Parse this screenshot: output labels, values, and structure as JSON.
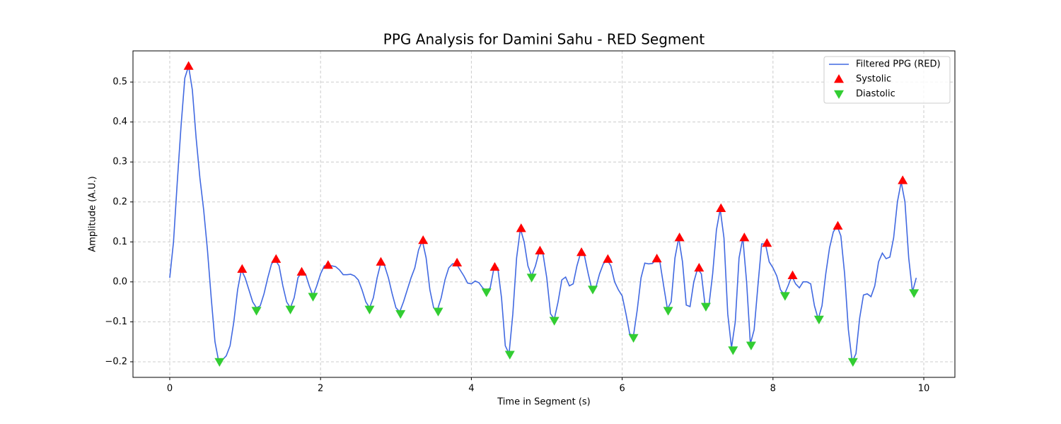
{
  "chart_data": {
    "type": "line",
    "title": "PPG Analysis for Damini Sahu - RED Segment",
    "xlabel": "Time in Segment (s)",
    "ylabel": "Amplitude (A.U.)",
    "xlim": [
      -0.4875,
      10.4125
    ],
    "ylim": [
      -0.239,
      0.578
    ],
    "xticks": [
      0,
      2,
      4,
      6,
      8,
      10
    ],
    "yticks": [
      {
        "value": -0.2,
        "label": "−0.2"
      },
      {
        "value": -0.1,
        "label": "−0.1"
      },
      {
        "value": 0,
        "label": "0.0"
      },
      0.1,
      0.2,
      0.3,
      0.4,
      0.5
    ],
    "grid": true,
    "legend": "upper-right",
    "series": [
      {
        "name": "Filtered PPG (RED)",
        "type": "line",
        "color": "#4169e1",
        "x": [
          0,
          0.05,
          0.1,
          0.15,
          0.2,
          0.25,
          0.3,
          0.35,
          0.4,
          0.45,
          0.5,
          0.55,
          0.6,
          0.65,
          0.7,
          0.75,
          0.8,
          0.85,
          0.9,
          0.95,
          1,
          1.05,
          1.1,
          1.15,
          1.2,
          1.25,
          1.3,
          1.35,
          1.4,
          1.45,
          1.5,
          1.55,
          1.6,
          1.65,
          1.7,
          1.75,
          1.8,
          1.85,
          1.9,
          1.95,
          2,
          2.05,
          2.1,
          2.15,
          2.2,
          2.25,
          2.3,
          2.35,
          2.4,
          2.45,
          2.5,
          2.55,
          2.6,
          2.65,
          2.7,
          2.75,
          2.8,
          2.85,
          2.9,
          2.95,
          3,
          3.05,
          3.1,
          3.15,
          3.2,
          3.25,
          3.3,
          3.35,
          3.4,
          3.45,
          3.5,
          3.55,
          3.6,
          3.65,
          3.7,
          3.75,
          3.8,
          3.85,
          3.9,
          3.95,
          4,
          4.05,
          4.1,
          4.15,
          4.2,
          4.25,
          4.3,
          4.35,
          4.4,
          4.45,
          4.5,
          4.55,
          4.6,
          4.65,
          4.7,
          4.75,
          4.8,
          4.85,
          4.9,
          4.95,
          5,
          5.05,
          5.1,
          5.15,
          5.2,
          5.25,
          5.3,
          5.35,
          5.4,
          5.45,
          5.5,
          5.55,
          5.6,
          5.65,
          5.7,
          5.75,
          5.8,
          5.85,
          5.9,
          5.95,
          6,
          6.05,
          6.1,
          6.15,
          6.2,
          6.25,
          6.3,
          6.35,
          6.4,
          6.45,
          6.5,
          6.55,
          6.6,
          6.65,
          6.7,
          6.75,
          6.8,
          6.85,
          6.9,
          6.95,
          7,
          7.05,
          7.1,
          7.15,
          7.2,
          7.25,
          7.3,
          7.35,
          7.4,
          7.45,
          7.5,
          7.55,
          7.6,
          7.65,
          7.7,
          7.75,
          7.8,
          7.85,
          7.9,
          7.95,
          8,
          8.05,
          8.1,
          8.15,
          8.2,
          8.25,
          8.3,
          8.35,
          8.4,
          8.45,
          8.5,
          8.55,
          8.6,
          8.65,
          8.7,
          8.75,
          8.8,
          8.85,
          8.9,
          8.95,
          9,
          9.05,
          9.1,
          9.15,
          9.2,
          9.25,
          9.3,
          9.35,
          9.4,
          9.45,
          9.5,
          9.55,
          9.6,
          9.65,
          9.7,
          9.75,
          9.8,
          9.85,
          9.9
        ],
        "values": [
          0.01,
          0.1,
          0.25,
          0.39,
          0.51,
          0.54,
          0.48,
          0.36,
          0.26,
          0.18,
          0.08,
          -0.04,
          -0.15,
          -0.2,
          -0.195,
          -0.185,
          -0.16,
          -0.1,
          -0.02,
          0.03,
          0.01,
          -0.02,
          -0.05,
          -0.065,
          -0.06,
          -0.03,
          0.01,
          0.045,
          0.055,
          0.04,
          -0.01,
          -0.05,
          -0.065,
          -0.04,
          0.01,
          0.025,
          0.02,
          -0.01,
          -0.035,
          -0.01,
          0.02,
          0.04,
          0.04,
          0.04,
          0.038,
          0.03,
          0.018,
          0.018,
          0.019,
          0.015,
          0.005,
          -0.02,
          -0.05,
          -0.065,
          -0.04,
          0.01,
          0.048,
          0.04,
          0.01,
          -0.03,
          -0.065,
          -0.075,
          -0.05,
          -0.02,
          0.01,
          0.035,
          0.08,
          0.103,
          0.06,
          -0.02,
          -0.065,
          -0.07,
          -0.04,
          0.005,
          0.035,
          0.045,
          0.046,
          0.03,
          0.015,
          -0.003,
          -0.005,
          0.002,
          -0.002,
          -0.015,
          -0.022,
          -0.015,
          0.035,
          0.035,
          -0.04,
          -0.16,
          -0.18,
          -0.08,
          0.06,
          0.133,
          0.1,
          0.04,
          0.015,
          0.04,
          0.076,
          0.07,
          0.01,
          -0.08,
          -0.093,
          -0.05,
          0.005,
          0.012,
          -0.01,
          -0.005,
          0.04,
          0.073,
          0.065,
          0.02,
          -0.02,
          -0.015,
          0.02,
          0.045,
          0.055,
          0.04,
          0.0,
          -0.02,
          -0.035,
          -0.08,
          -0.13,
          -0.135,
          -0.07,
          0.01,
          0.047,
          0.045,
          0.046,
          0.055,
          0.05,
          -0.01,
          -0.068,
          -0.05,
          0.06,
          0.11,
          0.05,
          -0.058,
          -0.062,
          0.0,
          0.033,
          0.02,
          -0.06,
          -0.06,
          0.02,
          0.13,
          0.182,
          0.11,
          -0.08,
          -0.165,
          -0.1,
          0.06,
          0.11,
          0.0,
          -0.155,
          -0.12,
          -0.01,
          0.095,
          0.095,
          0.05,
          0.035,
          0.015,
          -0.02,
          -0.032,
          -0.01,
          0.015,
          -0.005,
          -0.015,
          0.0,
          0.0,
          -0.005,
          -0.06,
          -0.093,
          -0.06,
          0.02,
          0.085,
          0.125,
          0.14,
          0.115,
          0.02,
          -0.12,
          -0.2,
          -0.18,
          -0.09,
          -0.033,
          -0.03,
          -0.037,
          -0.01,
          0.05,
          0.072,
          0.058,
          0.062,
          0.11,
          0.2,
          0.25,
          0.2,
          0.06,
          -0.025,
          0.01
        ]
      },
      {
        "name": "Systolic",
        "type": "scatter",
        "marker": "^",
        "color": "#ff0000",
        "x": [
          0.25,
          0.96,
          1.41,
          1.75,
          2.1,
          2.8,
          3.36,
          3.81,
          4.31,
          4.66,
          4.91,
          5.46,
          5.81,
          6.46,
          6.76,
          7.02,
          7.31,
          7.62,
          7.92,
          8.26,
          8.86,
          9.72
        ],
        "values": [
          0.54,
          0.032,
          0.057,
          0.025,
          0.042,
          0.05,
          0.104,
          0.048,
          0.037,
          0.134,
          0.078,
          0.074,
          0.057,
          0.058,
          0.111,
          0.035,
          0.184,
          0.111,
          0.097,
          0.016,
          0.14,
          0.254
        ]
      },
      {
        "name": "Diastolic",
        "type": "scatter",
        "marker": "v",
        "color": "#32cd32",
        "x": [
          0.66,
          1.15,
          1.6,
          1.9,
          2.65,
          3.06,
          3.56,
          4.2,
          4.51,
          4.8,
          5.1,
          5.61,
          6.15,
          6.61,
          7.11,
          7.47,
          7.71,
          8.16,
          8.61,
          9.06,
          9.87
        ],
        "values": [
          -0.2,
          -0.072,
          -0.069,
          -0.037,
          -0.069,
          -0.08,
          -0.074,
          -0.026,
          -0.182,
          0.011,
          -0.097,
          -0.019,
          -0.14,
          -0.072,
          -0.062,
          -0.171,
          -0.159,
          -0.035,
          -0.094,
          -0.2,
          -0.028
        ]
      }
    ]
  }
}
